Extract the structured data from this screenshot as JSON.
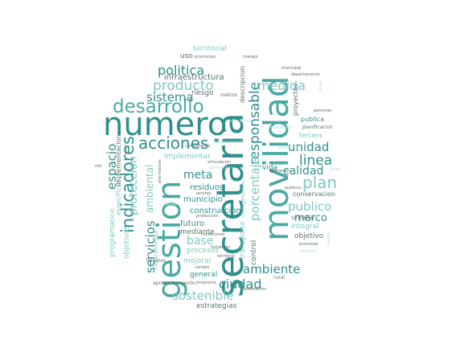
{
  "palette": {
    "dark": "#2f8f8c",
    "mid": "#4aa9a4",
    "light": "#7ec8c3",
    "pale": "#b5dfdb",
    "gray": "#5f6f70"
  },
  "words": [
    {
      "id": "w-secretaria",
      "text": "secretaria"
    },
    {
      "id": "w-movilidad",
      "text": "movilidad"
    },
    {
      "id": "w-gestion",
      "text": "gestion"
    },
    {
      "id": "w-numero",
      "text": "numero"
    },
    {
      "id": "w-desarrollo",
      "text": "desarrollo"
    },
    {
      "id": "w-indicadores",
      "text": "indicadores"
    },
    {
      "id": "w-acciones",
      "text": "acciones"
    },
    {
      "id": "w-producto",
      "text": "producto"
    },
    {
      "id": "w-politica",
      "text": "politica"
    },
    {
      "id": "w-sistema",
      "text": "sistema"
    },
    {
      "id": "w-medida",
      "text": "medida"
    },
    {
      "id": "w-responsable",
      "text": "responsable"
    },
    {
      "id": "w-porcentaje",
      "text": "porcentaje"
    },
    {
      "id": "w-plan",
      "text": "plan"
    },
    {
      "id": "w-linea",
      "text": "linea"
    },
    {
      "id": "w-unidad",
      "text": "unidad"
    },
    {
      "id": "w-calidad",
      "text": "calidad"
    },
    {
      "id": "w-publico",
      "text": "publico"
    },
    {
      "id": "w-marco",
      "text": "marco"
    },
    {
      "id": "w-ambiente",
      "text": "ambiente"
    },
    {
      "id": "w-ciudad",
      "text": "ciudad"
    },
    {
      "id": "w-sostenible",
      "text": "sostenible"
    },
    {
      "id": "w-servicios",
      "text": "servicios"
    },
    {
      "id": "w-base",
      "text": "base"
    },
    {
      "id": "w-espacio",
      "text": "espacio"
    },
    {
      "id": "w-meta",
      "text": "meta"
    },
    {
      "id": "w-proteccion",
      "text": "proteccion"
    },
    {
      "id": "w-ambiental",
      "text": "ambiental"
    },
    {
      "id": "w-residuos",
      "text": "residuos"
    },
    {
      "id": "w-municipio",
      "text": "municipio"
    },
    {
      "id": "w-construccion",
      "text": "construccion"
    },
    {
      "id": "w-futuro",
      "text": "futuro"
    },
    {
      "id": "w-mediante",
      "text": "mediante"
    },
    {
      "id": "w-procesos",
      "text": "procesos"
    },
    {
      "id": "w-mejorar",
      "text": "mejorar"
    },
    {
      "id": "w-general",
      "text": "general"
    },
    {
      "id": "w-estrategias",
      "text": "estrategias"
    },
    {
      "id": "w-infraestructura",
      "text": "infraestructura"
    },
    {
      "id": "w-uso",
      "text": "uso"
    },
    {
      "id": "w-territorial",
      "text": "territorial"
    },
    {
      "id": "w-riesgo",
      "text": "riesgo"
    },
    {
      "id": "w-implementar",
      "text": "implementar"
    },
    {
      "id": "w-programatico",
      "text": "programatico"
    },
    {
      "id": "w-objetivos",
      "text": "objetivos"
    },
    {
      "id": "w-especificos",
      "text": "especificos"
    },
    {
      "id": "w-implementacion",
      "text": "implementacion"
    },
    {
      "id": "w-transporte",
      "text": "transporte"
    },
    {
      "id": "w-control",
      "text": "control"
    },
    {
      "id": "w-vida",
      "text": "vida"
    },
    {
      "id": "w-integral",
      "text": "integral"
    },
    {
      "id": "w-urbana",
      "text": "urbana"
    },
    {
      "id": "w-objetivo",
      "text": "objetivo"
    },
    {
      "id": "w-conservacion",
      "text": "conservacion"
    },
    {
      "id": "w-publica",
      "text": "publica"
    },
    {
      "id": "w-proyectos",
      "text": "proyectos"
    },
    {
      "id": "w-tercera",
      "text": "tercera"
    },
    {
      "id": "w-descripcion",
      "text": "descripcion"
    },
    {
      "id": "w-metros",
      "text": "metros"
    },
    {
      "id": "w-promocion",
      "text": "promocion"
    },
    {
      "id": "w-manejo",
      "text": "manejo"
    },
    {
      "id": "w-municipal",
      "text": "municipal"
    },
    {
      "id": "w-departamento",
      "text": "departamento"
    },
    {
      "id": "w-planificacion",
      "text": "planificacion"
    },
    {
      "id": "w-permitan",
      "text": "permitan"
    },
    {
      "id": "w-aprovechamiento",
      "text": "aprovechamiento"
    },
    {
      "id": "w-programa",
      "text": "programa"
    },
    {
      "id": "w-hogares",
      "text": "hogares"
    },
    {
      "id": "w-mejoramiento",
      "text": "mejoramiento"
    },
    {
      "id": "w-rural",
      "text": "rural"
    },
    {
      "id": "w-cambio",
      "text": "cambio"
    },
    {
      "id": "w-planeacion",
      "text": "planeacion"
    },
    {
      "id": "w-territorio",
      "text": "territorio"
    },
    {
      "id": "w-condiciones",
      "text": "condiciones"
    },
    {
      "id": "w-produccion",
      "text": "produccion"
    },
    {
      "id": "w-actores",
      "text": "actores"
    },
    {
      "id": "w-vivienda",
      "text": "vivienda"
    },
    {
      "id": "w-alternativas",
      "text": "alternativas"
    },
    {
      "id": "w-articulacion",
      "text": "articulacion"
    },
    {
      "id": "w-generacion",
      "text": "generacion"
    },
    {
      "id": "w-componente",
      "text": "componente"
    },
    {
      "id": "w-diferentes",
      "text": "diferentes"
    },
    {
      "id": "w-publicos",
      "text": "publicos"
    },
    {
      "id": "w-fortalecer",
      "text": "fortalecer"
    },
    {
      "id": "w-nivel",
      "text": "nivel"
    },
    {
      "id": "w-estructura",
      "text": "estructura"
    },
    {
      "id": "w-fortalecimiento",
      "text": "fortalecimiento"
    },
    {
      "id": "w-corregimientos",
      "text": "corregimientos"
    },
    {
      "id": "w-promover",
      "text": "promover"
    },
    {
      "id": "w-nacional",
      "text": "nacional"
    },
    {
      "id": "w-local",
      "text": "local"
    },
    {
      "id": "w-red",
      "text": "red"
    },
    {
      "id": "w-largo",
      "text": "largo"
    },
    {
      "id": "w-entidades",
      "text": "entidades"
    },
    {
      "id": "w-seguimiento",
      "text": "seguimiento"
    },
    {
      "id": "w-zonas",
      "text": "zonas"
    },
    {
      "id": "w-fuente",
      "text": "fuente"
    }
  ]
}
